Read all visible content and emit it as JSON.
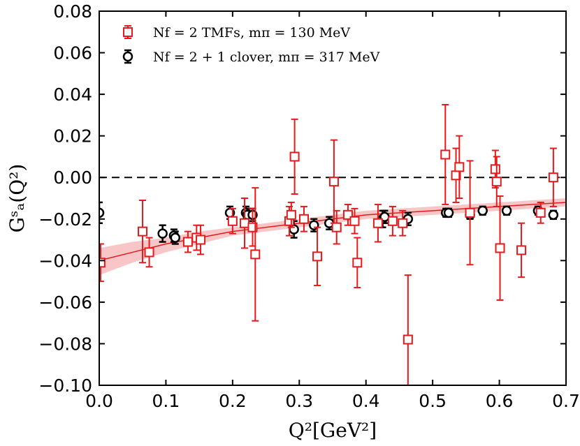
{
  "chart_data": {
    "type": "scatter",
    "title": "",
    "xlabel": "Q²[GeV²]",
    "ylabel": "Gˢₐ(Q²)",
    "xlim": [
      0.0,
      0.7
    ],
    "ylim": [
      -0.1,
      0.08
    ],
    "xticks": [
      "0.0",
      "0.1",
      "0.2",
      "0.3",
      "0.4",
      "0.5",
      "0.6",
      "0.7"
    ],
    "yticks": [
      "0.08",
      "0.06",
      "0.04",
      "0.02",
      "0.00",
      "−0.02",
      "−0.04",
      "−0.06",
      "−0.08",
      "−0.10"
    ],
    "reference_line": {
      "y": 0.0,
      "style": "dashed",
      "color": "#000000"
    },
    "legend": {
      "position": "top-left"
    },
    "series": [
      {
        "name": "N_f = 2 TMFs, m_π = 130 MeV",
        "legend_label": "Nf = 2 TMFs, mπ = 130 MeV",
        "marker": "square",
        "color": "#e41a1c",
        "points": [
          {
            "x": 0.002,
            "y": -0.041,
            "err": 0.009
          },
          {
            "x": 0.065,
            "y": -0.026,
            "err": 0.015
          },
          {
            "x": 0.075,
            "y": -0.036,
            "err": 0.007
          },
          {
            "x": 0.133,
            "y": -0.031,
            "err": 0.005
          },
          {
            "x": 0.146,
            "y": -0.029,
            "err": 0.006
          },
          {
            "x": 0.152,
            "y": -0.03,
            "err": 0.007
          },
          {
            "x": 0.2,
            "y": -0.021,
            "err": 0.006
          },
          {
            "x": 0.218,
            "y": -0.022,
            "err": 0.012
          },
          {
            "x": 0.23,
            "y": -0.024,
            "err": 0.009
          },
          {
            "x": 0.234,
            "y": -0.037,
            "err": 0.032
          },
          {
            "x": 0.285,
            "y": -0.021,
            "err": 0.007
          },
          {
            "x": 0.288,
            "y": -0.018,
            "err": 0.006
          },
          {
            "x": 0.293,
            "y": 0.01,
            "err": 0.018
          },
          {
            "x": 0.327,
            "y": -0.038,
            "err": 0.014
          },
          {
            "x": 0.307,
            "y": -0.02,
            "err": 0.006
          },
          {
            "x": 0.352,
            "y": -0.002,
            "err": 0.02
          },
          {
            "x": 0.356,
            "y": -0.024,
            "err": 0.008
          },
          {
            "x": 0.373,
            "y": -0.018,
            "err": 0.005
          },
          {
            "x": 0.383,
            "y": -0.021,
            "err": 0.006
          },
          {
            "x": 0.387,
            "y": -0.041,
            "err": 0.012
          },
          {
            "x": 0.418,
            "y": -0.022,
            "err": 0.009
          },
          {
            "x": 0.44,
            "y": -0.021,
            "err": 0.007
          },
          {
            "x": 0.455,
            "y": -0.022,
            "err": 0.006
          },
          {
            "x": 0.463,
            "y": -0.078,
            "err": 0.031
          },
          {
            "x": 0.519,
            "y": 0.011,
            "err": 0.024
          },
          {
            "x": 0.535,
            "y": 0.001,
            "err": 0.013
          },
          {
            "x": 0.54,
            "y": 0.005,
            "err": 0.015
          },
          {
            "x": 0.556,
            "y": -0.017,
            "err": 0.025
          },
          {
            "x": 0.594,
            "y": 0.004,
            "err": 0.009
          },
          {
            "x": 0.596,
            "y": -0.002,
            "err": 0.012
          },
          {
            "x": 0.601,
            "y": -0.034,
            "err": 0.025
          },
          {
            "x": 0.633,
            "y": -0.035,
            "err": 0.013
          },
          {
            "x": 0.662,
            "y": -0.017,
            "err": 0.005
          },
          {
            "x": 0.681,
            "y": 0.0,
            "err": 0.014
          }
        ]
      },
      {
        "name": "N_f = 2 + 1 clover, m_π = 317 MeV",
        "legend_label": "Nf = 2 + 1 clover, mπ = 317 MeV",
        "marker": "circle",
        "color": "#000000",
        "points": [
          {
            "x": 0.0,
            "y": -0.017,
            "err": 0.005
          },
          {
            "x": 0.095,
            "y": -0.027,
            "err": 0.004
          },
          {
            "x": 0.112,
            "y": -0.028,
            "err": 0.003
          },
          {
            "x": 0.114,
            "y": -0.029,
            "err": 0.003
          },
          {
            "x": 0.196,
            "y": -0.017,
            "err": 0.003
          },
          {
            "x": 0.22,
            "y": -0.017,
            "err": 0.003
          },
          {
            "x": 0.222,
            "y": -0.018,
            "err": 0.003
          },
          {
            "x": 0.23,
            "y": -0.018,
            "err": 0.003
          },
          {
            "x": 0.292,
            "y": -0.025,
            "err": 0.004
          },
          {
            "x": 0.322,
            "y": -0.023,
            "err": 0.003
          },
          {
            "x": 0.345,
            "y": -0.022,
            "err": 0.003
          },
          {
            "x": 0.425,
            "y": -0.02,
            "err": 0.004
          },
          {
            "x": 0.428,
            "y": -0.019,
            "err": 0.003
          },
          {
            "x": 0.463,
            "y": -0.02,
            "err": 0.003
          },
          {
            "x": 0.52,
            "y": -0.017,
            "err": 0.002
          },
          {
            "x": 0.524,
            "y": -0.017,
            "err": 0.002
          },
          {
            "x": 0.556,
            "y": -0.018,
            "err": 0.002
          },
          {
            "x": 0.575,
            "y": -0.016,
            "err": 0.002
          },
          {
            "x": 0.611,
            "y": -0.016,
            "err": 0.002
          },
          {
            "x": 0.658,
            "y": -0.016,
            "err": 0.002
          },
          {
            "x": 0.681,
            "y": -0.018,
            "err": 0.002
          }
        ]
      }
    ],
    "fit": {
      "color": "#e41a1c",
      "x": [
        0.0,
        0.05,
        0.1,
        0.15,
        0.2,
        0.25,
        0.3,
        0.35,
        0.4,
        0.45,
        0.5,
        0.55,
        0.6,
        0.65,
        0.7
      ],
      "y": [
        -0.04,
        -0.036,
        -0.032,
        -0.029,
        -0.026,
        -0.024,
        -0.022,
        -0.02,
        -0.018,
        -0.017,
        -0.016,
        -0.015,
        -0.014,
        -0.013,
        -0.012
      ],
      "band_low": [
        -0.047,
        -0.041,
        -0.036,
        -0.032,
        -0.028,
        -0.026,
        -0.024,
        -0.022,
        -0.02,
        -0.019,
        -0.018,
        -0.017,
        -0.016,
        -0.015,
        -0.014
      ],
      "band_high": [
        -0.034,
        -0.031,
        -0.029,
        -0.026,
        -0.024,
        -0.022,
        -0.02,
        -0.018,
        -0.016,
        -0.015,
        -0.014,
        -0.013,
        -0.012,
        -0.011,
        -0.01
      ]
    }
  }
}
